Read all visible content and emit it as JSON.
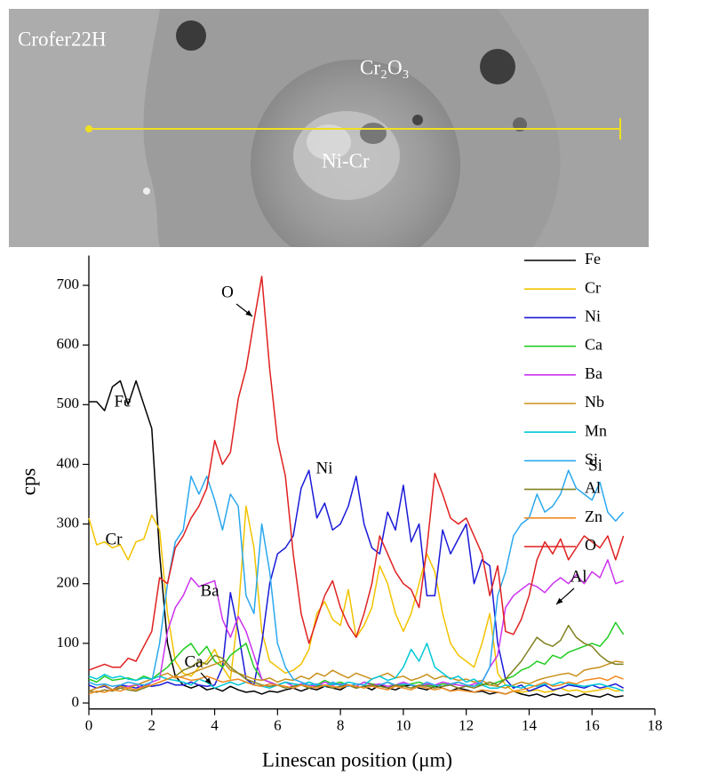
{
  "image": {
    "labels": {
      "alloy": "Crofer22H",
      "oxide": "Cr₂O₃",
      "core": "Ni-Cr"
    }
  },
  "chart_data": {
    "type": "line",
    "xlabel": "Linescan position (μm)",
    "ylabel": "cps",
    "xlim": [
      0,
      18
    ],
    "ylim": [
      -10,
      750
    ],
    "xticks": [
      0,
      2,
      4,
      6,
      8,
      10,
      12,
      14,
      16,
      18
    ],
    "yticks": [
      0,
      100,
      200,
      300,
      400,
      500,
      600,
      700
    ],
    "legend": "right",
    "annotations": [
      "Fe",
      "Cr",
      "O",
      "Ba",
      "Ni",
      "Ca",
      "Si",
      "Al"
    ],
    "x": [
      0,
      0.25,
      0.5,
      0.75,
      1,
      1.25,
      1.5,
      1.75,
      2,
      2.25,
      2.5,
      2.75,
      3,
      3.25,
      3.5,
      3.75,
      4,
      4.25,
      4.5,
      4.75,
      5,
      5.25,
      5.5,
      5.75,
      6,
      6.25,
      6.5,
      6.75,
      7,
      7.25,
      7.5,
      7.75,
      8,
      8.25,
      8.5,
      8.75,
      9,
      9.25,
      9.5,
      9.75,
      10,
      10.25,
      10.5,
      10.75,
      11,
      11.25,
      11.5,
      11.75,
      12,
      12.25,
      12.5,
      12.75,
      13,
      13.25,
      13.5,
      13.75,
      14,
      14.25,
      14.5,
      14.75,
      15,
      15.25,
      15.5,
      15.75,
      16,
      16.25,
      16.5,
      16.75,
      17
    ],
    "series": [
      {
        "name": "Fe",
        "color": "#000000",
        "values": [
          505,
          505,
          490,
          530,
          540,
          500,
          540,
          500,
          460,
          250,
          100,
          45,
          30,
          25,
          30,
          22,
          25,
          20,
          28,
          22,
          18,
          20,
          15,
          20,
          18,
          22,
          25,
          20,
          25,
          22,
          28,
          25,
          22,
          30,
          25,
          28,
          22,
          30,
          25,
          22,
          28,
          30,
          25,
          22,
          28,
          25,
          20,
          25,
          22,
          18,
          20,
          15,
          18,
          15,
          20,
          15,
          12,
          15,
          10,
          15,
          12,
          15,
          10,
          15,
          12,
          10,
          15,
          10,
          12
        ]
      },
      {
        "name": "Cr",
        "color": "#f2c300",
        "values": [
          310,
          265,
          270,
          260,
          265,
          240,
          270,
          275,
          315,
          290,
          150,
          70,
          50,
          45,
          60,
          70,
          90,
          60,
          40,
          150,
          330,
          260,
          120,
          70,
          60,
          50,
          55,
          65,
          90,
          150,
          170,
          140,
          130,
          190,
          110,
          130,
          160,
          230,
          200,
          150,
          120,
          150,
          200,
          250,
          220,
          150,
          100,
          80,
          70,
          60,
          100,
          150,
          50,
          30,
          20,
          18,
          20,
          22,
          18,
          20,
          25,
          20,
          22,
          18,
          20,
          22,
          25,
          20,
          22
        ]
      },
      {
        "name": "Ni",
        "color": "#1a1ad8",
        "values": [
          30,
          25,
          28,
          22,
          30,
          28,
          25,
          30,
          28,
          30,
          35,
          30,
          30,
          35,
          30,
          28,
          30,
          60,
          185,
          120,
          40,
          30,
          100,
          200,
          250,
          260,
          280,
          360,
          390,
          310,
          335,
          290,
          300,
          330,
          380,
          300,
          260,
          250,
          320,
          290,
          365,
          270,
          300,
          180,
          180,
          290,
          250,
          275,
          300,
          200,
          240,
          230,
          100,
          40,
          25,
          30,
          20,
          25,
          30,
          22,
          25,
          30,
          28,
          25,
          30,
          25,
          28,
          32,
          25
        ]
      },
      {
        "name": "Ca",
        "color": "#22cc22",
        "values": [
          40,
          35,
          45,
          38,
          40,
          42,
          38,
          45,
          40,
          50,
          60,
          75,
          90,
          100,
          80,
          95,
          70,
          60,
          80,
          90,
          100,
          60,
          40,
          35,
          30,
          35,
          32,
          30,
          35,
          30,
          38,
          32,
          35,
          30,
          28,
          35,
          32,
          30,
          35,
          28,
          30,
          32,
          35,
          30,
          28,
          32,
          30,
          35,
          30,
          28,
          32,
          30,
          35,
          40,
          45,
          55,
          60,
          70,
          65,
          80,
          75,
          85,
          90,
          95,
          100,
          95,
          110,
          135,
          115
        ]
      },
      {
        "name": "Ba",
        "color": "#cc33ee",
        "values": [
          20,
          25,
          30,
          22,
          25,
          28,
          30,
          25,
          35,
          40,
          120,
          160,
          180,
          210,
          195,
          200,
          205,
          140,
          110,
          145,
          120,
          80,
          40,
          35,
          30,
          35,
          28,
          32,
          30,
          28,
          35,
          30,
          32,
          30,
          28,
          35,
          30,
          32,
          28,
          30,
          35,
          30,
          28,
          32,
          30,
          35,
          32,
          30,
          28,
          32,
          35,
          60,
          80,
          160,
          180,
          190,
          200,
          195,
          185,
          200,
          210,
          200,
          215,
          200,
          220,
          210,
          240,
          200,
          205
        ]
      },
      {
        "name": "Nb",
        "color": "#c8901a",
        "values": [
          20,
          25,
          30,
          22,
          28,
          25,
          30,
          35,
          40,
          45,
          50,
          42,
          45,
          50,
          55,
          60,
          65,
          70,
          55,
          50,
          45,
          40,
          38,
          42,
          35,
          40,
          38,
          45,
          40,
          50,
          45,
          55,
          48,
          42,
          50,
          45,
          40,
          45,
          50,
          42,
          45,
          38,
          42,
          48,
          40,
          45,
          42,
          38,
          40,
          35,
          38,
          30,
          28,
          25,
          30,
          35,
          32,
          38,
          42,
          45,
          48,
          50,
          45,
          55,
          58,
          60,
          65,
          70,
          68
        ]
      },
      {
        "name": "Mn",
        "color": "#00c8d8",
        "values": [
          45,
          40,
          48,
          42,
          45,
          40,
          38,
          42,
          40,
          45,
          40,
          38,
          35,
          30,
          40,
          35,
          25,
          30,
          35,
          30,
          35,
          30,
          28,
          25,
          30,
          35,
          32,
          30,
          35,
          30,
          28,
          32,
          30,
          35,
          32,
          30,
          40,
          45,
          38,
          42,
          60,
          90,
          70,
          100,
          60,
          50,
          40,
          45,
          35,
          40,
          30,
          25,
          25,
          30,
          28,
          25,
          30,
          28,
          32,
          30,
          35,
          32,
          30,
          28,
          30,
          32,
          28,
          25,
          20
        ]
      },
      {
        "name": "Si",
        "color": "#2aa8ee",
        "values": [
          35,
          30,
          32,
          28,
          30,
          35,
          32,
          30,
          35,
          100,
          200,
          270,
          290,
          380,
          350,
          380,
          340,
          290,
          350,
          330,
          180,
          150,
          300,
          220,
          100,
          60,
          40,
          35,
          30,
          32,
          28,
          35,
          30,
          28,
          32,
          30,
          28,
          30,
          35,
          30,
          32,
          30,
          28,
          35,
          30,
          28,
          32,
          35,
          30,
          28,
          35,
          60,
          180,
          220,
          280,
          300,
          310,
          350,
          320,
          330,
          350,
          390,
          360,
          350,
          340,
          370,
          320,
          305,
          320
        ]
      },
      {
        "name": "Al",
        "color": "#808020",
        "values": [
          20,
          18,
          22,
          20,
          25,
          22,
          20,
          25,
          30,
          35,
          40,
          45,
          55,
          60,
          70,
          65,
          80,
          75,
          60,
          50,
          40,
          35,
          30,
          28,
          30,
          25,
          28,
          30,
          25,
          28,
          30,
          25,
          28,
          30,
          25,
          28,
          30,
          28,
          25,
          30,
          28,
          25,
          30,
          28,
          25,
          28,
          30,
          25,
          28,
          25,
          30,
          35,
          30,
          40,
          55,
          70,
          90,
          110,
          100,
          95,
          105,
          130,
          110,
          100,
          95,
          80,
          70,
          65,
          65
        ]
      },
      {
        "name": "Zn",
        "color": "#f08a20",
        "values": [
          15,
          20,
          18,
          22,
          20,
          25,
          22,
          28,
          30,
          35,
          40,
          45,
          42,
          38,
          40,
          45,
          40,
          35,
          38,
          40,
          35,
          30,
          28,
          32,
          30,
          28,
          25,
          30,
          28,
          25,
          30,
          28,
          25,
          30,
          28,
          25,
          28,
          25,
          22,
          28,
          25,
          22,
          28,
          25,
          22,
          25,
          20,
          22,
          20,
          18,
          22,
          20,
          18,
          15,
          20,
          22,
          25,
          30,
          35,
          28,
          30,
          35,
          32,
          38,
          40,
          42,
          38,
          45,
          40
        ]
      },
      {
        "name": "O",
        "color": "#e02020",
        "values": [
          55,
          60,
          65,
          60,
          60,
          75,
          70,
          95,
          120,
          210,
          200,
          260,
          280,
          310,
          330,
          360,
          440,
          400,
          420,
          510,
          560,
          640,
          715,
          560,
          440,
          380,
          250,
          150,
          100,
          140,
          180,
          205,
          160,
          130,
          110,
          150,
          200,
          280,
          250,
          220,
          200,
          190,
          160,
          260,
          385,
          350,
          310,
          300,
          310,
          280,
          250,
          180,
          230,
          120,
          115,
          140,
          180,
          240,
          270,
          250,
          275,
          240,
          260,
          280,
          270,
          260,
          280,
          240,
          280
        ]
      }
    ]
  }
}
